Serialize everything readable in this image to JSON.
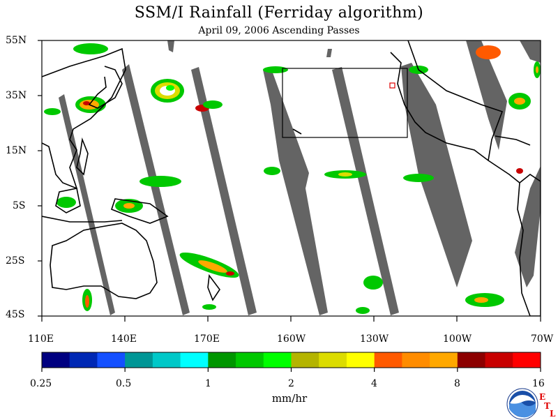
{
  "header": {
    "title": "SSM/I Rainfall (Ferriday algorithm)",
    "subtitle": "April 09, 2006  Ascending Passes"
  },
  "map": {
    "lat_labels": [
      "55N",
      "35N",
      "15N",
      "5S",
      "25S",
      "45S"
    ],
    "lon_labels": [
      "110E",
      "140E",
      "170E",
      "160W",
      "130W",
      "100W",
      "70W"
    ],
    "colors": {
      "land_outline": "#000000",
      "swath_gap": "#646464",
      "box_outline": "#000000",
      "marker": "#e00000"
    }
  },
  "colorbar": {
    "colors": [
      "#000080",
      "#0028b4",
      "#1450ff",
      "#009696",
      "#00c8c8",
      "#00ffff",
      "#009600",
      "#00c800",
      "#00ff00",
      "#b4b400",
      "#dcdc00",
      "#ffff00",
      "#ff5a00",
      "#ff8c00",
      "#ffa800",
      "#8c0000",
      "#c80000",
      "#ff0000"
    ],
    "tick_labels": [
      "0.25",
      "0.5",
      "1",
      "2",
      "4",
      "8",
      "16"
    ],
    "units": "mm/hr"
  },
  "logo": {
    "name": "NOAA",
    "lab_letters": [
      "E",
      "T",
      "L"
    ]
  }
}
